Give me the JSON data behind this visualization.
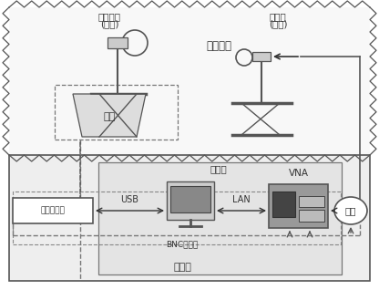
{
  "bg_color": "#ffffff",
  "anechoic_label": "微波暗室",
  "control_label": "控制室",
  "antenna_left_label1": "待测天线",
  "antenna_left_label2": "(接收)",
  "antenna_right_label1": "源天线",
  "antenna_right_label2": "(发射)",
  "turntable_label": "转台",
  "computer_label": "计算机",
  "usb_label": "USB",
  "lan_label": "LAN",
  "bnc_label": "BNC同轴线",
  "vna_label": "VNA",
  "power_amp_label": "功放",
  "ctrl_box_label": "转台控制笱"
}
